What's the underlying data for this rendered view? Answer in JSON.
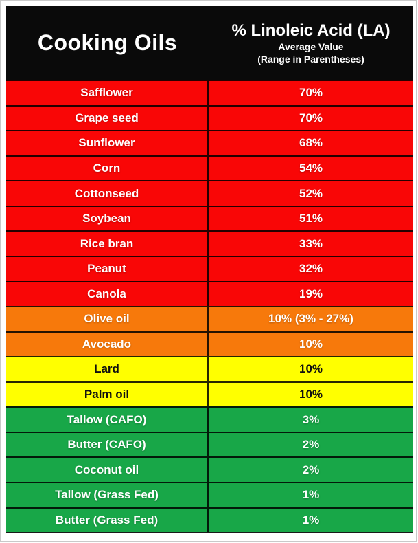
{
  "header": {
    "left_title": "Cooking Oils",
    "right_title": "% Linoleic Acid (LA)",
    "right_subtitle1": "Average Value",
    "right_subtitle2": "(Range in Parentheses)"
  },
  "colors": {
    "header_bg": "#0a0a0a",
    "red": "#f90606",
    "orange": "#f7790b",
    "yellow": "#ffff00",
    "green": "#18a748",
    "text_light": "#ffffff",
    "text_dark": "#101010"
  },
  "rows": [
    {
      "label": "Safflower",
      "value": "70%",
      "color": "red"
    },
    {
      "label": "Grape seed",
      "value": "70%",
      "color": "red"
    },
    {
      "label": "Sunflower",
      "value": "68%",
      "color": "red"
    },
    {
      "label": "Corn",
      "value": "54%",
      "color": "red"
    },
    {
      "label": "Cottonseed",
      "value": "52%",
      "color": "red"
    },
    {
      "label": "Soybean",
      "value": "51%",
      "color": "red"
    },
    {
      "label": "Rice bran",
      "value": "33%",
      "color": "red"
    },
    {
      "label": "Peanut",
      "value": "32%",
      "color": "red"
    },
    {
      "label": "Canola",
      "value": "19%",
      "color": "red"
    },
    {
      "label": "Olive oil",
      "value": "10% (3% - 27%)",
      "color": "orange"
    },
    {
      "label": "Avocado",
      "value": "10%",
      "color": "orange"
    },
    {
      "label": "Lard",
      "value": "10%",
      "color": "yellow"
    },
    {
      "label": "Palm oil",
      "value": "10%",
      "color": "yellow"
    },
    {
      "label": "Tallow (CAFO)",
      "value": "3%",
      "color": "green"
    },
    {
      "label": "Butter (CAFO)",
      "value": "2%",
      "color": "green"
    },
    {
      "label": "Coconut oil",
      "value": "2%",
      "color": "green"
    },
    {
      "label": "Tallow (Grass Fed)",
      "value": "1%",
      "color": "green"
    },
    {
      "label": "Butter (Grass Fed)",
      "value": "1%",
      "color": "green"
    }
  ],
  "chart_data": {
    "type": "table",
    "title": "Cooking Oils — % Linoleic Acid (LA), Average Value (Range in Parentheses)",
    "columns": [
      "Cooking Oils",
      "% Linoleic Acid (LA)"
    ],
    "rows": [
      [
        "Safflower",
        "70%"
      ],
      [
        "Grape seed",
        "70%"
      ],
      [
        "Sunflower",
        "68%"
      ],
      [
        "Corn",
        "54%"
      ],
      [
        "Cottonseed",
        "52%"
      ],
      [
        "Soybean",
        "51%"
      ],
      [
        "Rice bran",
        "33%"
      ],
      [
        "Peanut",
        "32%"
      ],
      [
        "Canola",
        "19%"
      ],
      [
        "Olive oil",
        "10% (3% - 27%)"
      ],
      [
        "Avocado",
        "10%"
      ],
      [
        "Lard",
        "10%"
      ],
      [
        "Palm oil",
        "10%"
      ],
      [
        "Tallow (CAFO)",
        "3%"
      ],
      [
        "Butter (CAFO)",
        "2%"
      ],
      [
        "Coconut oil",
        "2%"
      ],
      [
        "Tallow (Grass Fed)",
        "1%"
      ],
      [
        "Butter (Grass Fed)",
        "1%"
      ]
    ],
    "values_numeric": [
      70,
      70,
      68,
      54,
      52,
      51,
      33,
      32,
      19,
      10,
      10,
      10,
      10,
      3,
      2,
      2,
      1,
      1
    ],
    "olive_oil_range": [
      3,
      27
    ],
    "row_color_bands": [
      "red",
      "red",
      "red",
      "red",
      "red",
      "red",
      "red",
      "red",
      "red",
      "orange",
      "orange",
      "yellow",
      "yellow",
      "green",
      "green",
      "green",
      "green",
      "green"
    ],
    "legend_position": "none",
    "grid": true
  }
}
